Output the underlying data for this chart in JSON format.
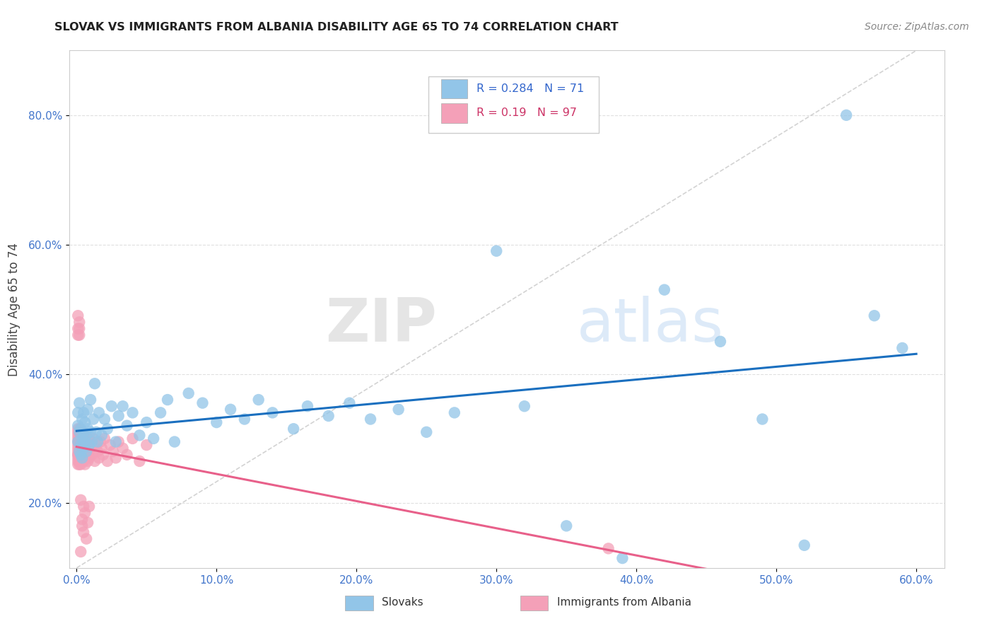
{
  "title": "SLOVAK VS IMMIGRANTS FROM ALBANIA DISABILITY AGE 65 TO 74 CORRELATION CHART",
  "source": "Source: ZipAtlas.com",
  "ylabel": "Disability Age 65 to 74",
  "xlim": [
    -0.005,
    0.62
  ],
  "ylim": [
    0.1,
    0.9
  ],
  "xticks": [
    0.0,
    0.1,
    0.2,
    0.3,
    0.4,
    0.5,
    0.6
  ],
  "yticks": [
    0.2,
    0.4,
    0.6,
    0.8
  ],
  "xticklabels": [
    "0.0%",
    "10.0%",
    "20.0%",
    "30.0%",
    "40.0%",
    "50.0%",
    "60.0%"
  ],
  "yticklabels": [
    "20.0%",
    "40.0%",
    "60.0%",
    "80.0%"
  ],
  "R_slovak": 0.284,
  "N_slovak": 71,
  "R_albania": 0.19,
  "N_albania": 97,
  "slovak_color": "#92C5E8",
  "albania_color": "#F4A0B8",
  "trendline_slovak_color": "#1A6FBF",
  "trendline_albania_color": "#E8608A",
  "diagonal_color": "#C8C8C8",
  "background_color": "#FFFFFF",
  "grid_color": "#DDDDDD",
  "title_color": "#222222",
  "source_color": "#888888",
  "watermark_zip": "ZIP",
  "watermark_atlas": "atlas",
  "slovak_x": [
    0.001,
    0.001,
    0.001,
    0.002,
    0.002,
    0.002,
    0.003,
    0.003,
    0.003,
    0.004,
    0.004,
    0.004,
    0.005,
    0.005,
    0.005,
    0.006,
    0.006,
    0.007,
    0.007,
    0.008,
    0.008,
    0.009,
    0.01,
    0.01,
    0.011,
    0.012,
    0.013,
    0.014,
    0.015,
    0.016,
    0.018,
    0.02,
    0.022,
    0.025,
    0.028,
    0.03,
    0.033,
    0.036,
    0.04,
    0.045,
    0.05,
    0.055,
    0.06,
    0.065,
    0.07,
    0.08,
    0.09,
    0.1,
    0.11,
    0.12,
    0.13,
    0.14,
    0.155,
    0.165,
    0.18,
    0.195,
    0.21,
    0.23,
    0.25,
    0.27,
    0.3,
    0.32,
    0.35,
    0.39,
    0.42,
    0.46,
    0.49,
    0.52,
    0.55,
    0.57,
    0.59
  ],
  "slovak_y": [
    0.295,
    0.32,
    0.34,
    0.28,
    0.31,
    0.355,
    0.29,
    0.315,
    0.275,
    0.3,
    0.33,
    0.27,
    0.31,
    0.285,
    0.34,
    0.295,
    0.325,
    0.305,
    0.28,
    0.315,
    0.345,
    0.29,
    0.31,
    0.36,
    0.295,
    0.33,
    0.385,
    0.31,
    0.295,
    0.34,
    0.305,
    0.33,
    0.315,
    0.35,
    0.295,
    0.335,
    0.35,
    0.32,
    0.34,
    0.305,
    0.325,
    0.3,
    0.34,
    0.36,
    0.295,
    0.37,
    0.355,
    0.325,
    0.345,
    0.33,
    0.36,
    0.34,
    0.315,
    0.35,
    0.335,
    0.355,
    0.33,
    0.345,
    0.31,
    0.34,
    0.59,
    0.35,
    0.165,
    0.115,
    0.53,
    0.45,
    0.33,
    0.135,
    0.8,
    0.49,
    0.44
  ],
  "albania_x": [
    0.001,
    0.001,
    0.001,
    0.001,
    0.001,
    0.001,
    0.001,
    0.001,
    0.001,
    0.001,
    0.001,
    0.001,
    0.001,
    0.002,
    0.002,
    0.002,
    0.002,
    0.002,
    0.002,
    0.002,
    0.002,
    0.002,
    0.002,
    0.002,
    0.002,
    0.003,
    0.003,
    0.003,
    0.003,
    0.003,
    0.003,
    0.003,
    0.003,
    0.003,
    0.004,
    0.004,
    0.004,
    0.004,
    0.004,
    0.004,
    0.004,
    0.005,
    0.005,
    0.005,
    0.005,
    0.005,
    0.006,
    0.006,
    0.006,
    0.006,
    0.007,
    0.007,
    0.007,
    0.008,
    0.008,
    0.008,
    0.009,
    0.009,
    0.01,
    0.01,
    0.011,
    0.012,
    0.013,
    0.014,
    0.015,
    0.016,
    0.017,
    0.018,
    0.019,
    0.02,
    0.022,
    0.024,
    0.026,
    0.028,
    0.03,
    0.033,
    0.036,
    0.04,
    0.045,
    0.05,
    0.001,
    0.001,
    0.001,
    0.002,
    0.002,
    0.002,
    0.003,
    0.003,
    0.004,
    0.004,
    0.005,
    0.005,
    0.006,
    0.007,
    0.008,
    0.009,
    0.38
  ],
  "albania_y": [
    0.295,
    0.31,
    0.28,
    0.265,
    0.3,
    0.275,
    0.285,
    0.27,
    0.315,
    0.26,
    0.305,
    0.29,
    0.275,
    0.31,
    0.285,
    0.265,
    0.3,
    0.27,
    0.29,
    0.28,
    0.26,
    0.315,
    0.285,
    0.295,
    0.27,
    0.31,
    0.28,
    0.265,
    0.295,
    0.27,
    0.285,
    0.275,
    0.3,
    0.26,
    0.295,
    0.275,
    0.265,
    0.285,
    0.3,
    0.27,
    0.31,
    0.28,
    0.265,
    0.295,
    0.275,
    0.285,
    0.3,
    0.27,
    0.29,
    0.26,
    0.295,
    0.275,
    0.285,
    0.3,
    0.265,
    0.29,
    0.28,
    0.27,
    0.295,
    0.285,
    0.275,
    0.3,
    0.265,
    0.29,
    0.28,
    0.27,
    0.295,
    0.285,
    0.275,
    0.3,
    0.265,
    0.29,
    0.28,
    0.27,
    0.295,
    0.285,
    0.275,
    0.3,
    0.265,
    0.29,
    0.46,
    0.49,
    0.47,
    0.46,
    0.48,
    0.47,
    0.125,
    0.205,
    0.165,
    0.175,
    0.195,
    0.155,
    0.185,
    0.145,
    0.17,
    0.195,
    0.13
  ]
}
